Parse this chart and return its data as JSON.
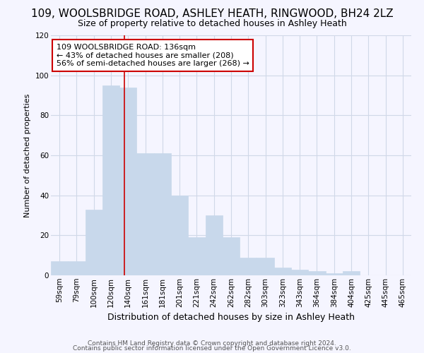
{
  "title": "109, WOOLSBRIDGE ROAD, ASHLEY HEATH, RINGWOOD, BH24 2LZ",
  "subtitle": "Size of property relative to detached houses in Ashley Heath",
  "xlabel": "Distribution of detached houses by size in Ashley Heath",
  "ylabel": "Number of detached properties",
  "bins": [
    "59sqm",
    "79sqm",
    "100sqm",
    "120sqm",
    "140sqm",
    "161sqm",
    "181sqm",
    "201sqm",
    "221sqm",
    "242sqm",
    "262sqm",
    "282sqm",
    "303sqm",
    "323sqm",
    "343sqm",
    "364sqm",
    "384sqm",
    "404sqm",
    "425sqm",
    "445sqm",
    "465sqm"
  ],
  "values": [
    7,
    7,
    33,
    95,
    94,
    61,
    61,
    40,
    19,
    30,
    19,
    9,
    9,
    4,
    3,
    2,
    1,
    2,
    0,
    0,
    0
  ],
  "bar_color": "#c8d8eb",
  "bar_edge_color": "#c8d8eb",
  "red_line_x": 3.8,
  "red_line_label": "109 WOOLSBRIDGE ROAD: 136sqm",
  "annotation_line2": "← 43% of detached houses are smaller (208)",
  "annotation_line3": "56% of semi-detached houses are larger (268) →",
  "annotation_box_color": "#ffffff",
  "annotation_box_edge": "#cc0000",
  "ylim": [
    0,
    120
  ],
  "yticks": [
    0,
    20,
    40,
    60,
    80,
    100,
    120
  ],
  "grid_color": "#d0d8e8",
  "footer_line1": "Contains HM Land Registry data © Crown copyright and database right 2024.",
  "footer_line2": "Contains public sector information licensed under the Open Government Licence v3.0.",
  "bg_color": "#f5f5ff",
  "title_fontsize": 11,
  "subtitle_fontsize": 9,
  "xlabel_fontsize": 9,
  "ylabel_fontsize": 8,
  "tick_fontsize": 7.5,
  "annotation_fontsize": 8,
  "footer_fontsize": 6.5
}
